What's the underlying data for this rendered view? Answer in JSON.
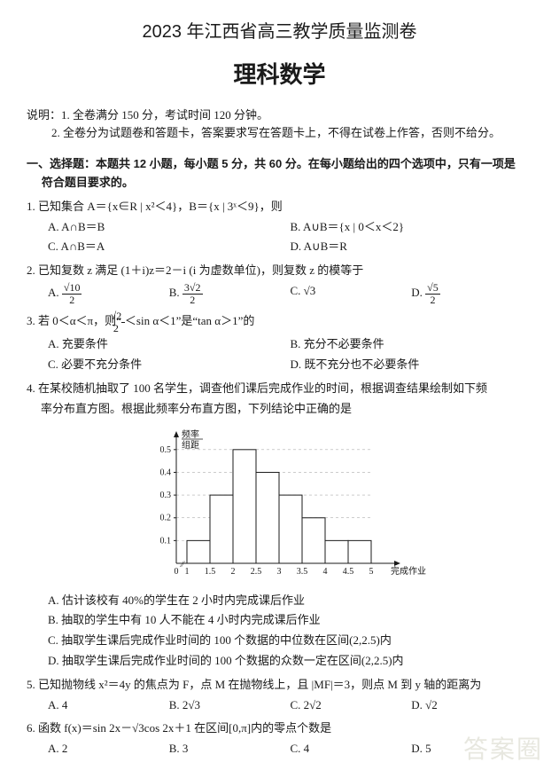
{
  "header": {
    "main_title": "2023 年江西省高三教学质量监测卷",
    "subject": "理科数学"
  },
  "instructions": {
    "label": "说明：",
    "items": [
      "1. 全卷满分 150 分，考试时间 120 分钟。",
      "2. 全卷分为试题卷和答题卡，答案要求写在答题卡上，不得在试卷上作答，否则不给分。"
    ]
  },
  "section": {
    "line1": "一、选择题：本题共 12 小题，每小题 5 分，共 60 分。在每小题给出的四个选项中，只有一项是",
    "line2": "符合题目要求的。"
  },
  "q1": {
    "stem": "1. 已知集合 A＝{x∈R | x²＜4}，B＝{x | 3ˣ＜9}，则",
    "A": "A. A∩B＝B",
    "B": "B. A∪B＝{x | 0＜x＜2}",
    "C": "C. A∩B＝A",
    "D": "D. A∪B＝R"
  },
  "q2": {
    "stem": "2. 已知复数 z 满足 (1＋i)z＝2－i (i 为虚数单位)，则复数 z 的模等于",
    "A_num": "√10",
    "A_den": "2",
    "B_num": "3√2",
    "B_den": "2",
    "C": "C. √3",
    "D_num": "√5",
    "D_den": "2"
  },
  "q3": {
    "stem_pre": "3. 若 0＜α＜π，则“",
    "stem_num": "√2",
    "stem_den": "2",
    "stem_post": "＜sin α＜1”是“tan α＞1”的",
    "A": "A. 充要条件",
    "B": "B. 充分不必要条件",
    "C": "C. 必要不充分条件",
    "D": "D. 既不充分也不必要条件"
  },
  "q4": {
    "stem1": "4. 在某校随机抽取了 100 名学生，调查他们课后完成作业的时间，根据调查结果绘制如下频",
    "stem2": "率分布直方图。根据此频率分布直方图，下列结论中正确的是",
    "A": "A. 估计该校有 40%的学生在 2 小时内完成课后作业",
    "B": "B. 抽取的学生中有 10 人不能在 4 小时内完成课后作业",
    "C": "C. 抽取学生课后完成作业时间的 100 个数据的中位数在区间(2,2.5)内",
    "D": "D. 抽取学生课后完成作业时间的 100 个数据的众数一定在区间(2,2.5)内",
    "chart": {
      "type": "histogram",
      "ylabel_top": "频率",
      "ylabel_bot": "组距",
      "xlabel": "完成作业时间/时",
      "x_ticks": [
        "0",
        "1",
        "1.5",
        "2",
        "2.5",
        "3",
        "3.5",
        "4",
        "4.5",
        "5"
      ],
      "y_ticks": [
        0.1,
        0.2,
        0.3,
        0.4,
        0.5
      ],
      "bins": [
        {
          "label": "1-1.5",
          "height": 0.1
        },
        {
          "label": "1.5-2",
          "height": 0.3
        },
        {
          "label": "2-2.5",
          "height": 0.5
        },
        {
          "label": "2.5-3",
          "height": 0.4
        },
        {
          "label": "3-3.5",
          "height": 0.3
        },
        {
          "label": "3.5-4",
          "height": 0.2
        },
        {
          "label": "4-4.5",
          "height": 0.1
        },
        {
          "label": "4.5-5",
          "height": 0.1
        }
      ],
      "bar_fill": "#ffffff",
      "bar_stroke": "#1a1a1a",
      "axis_color": "#1a1a1a",
      "dash_color": "#1a1a1a",
      "bg": "#ffffff",
      "font_size": 10,
      "ylim": 0.55,
      "bar_unit_width": 26
    }
  },
  "q5": {
    "stem": "5. 已知抛物线 x²＝4y 的焦点为 F，点 M 在抛物线上，且 |MF|＝3，则点 M 到 y 轴的距离为",
    "A": "A. 4",
    "B": "B. 2√3",
    "C": "C. 2√2",
    "D": "D. √2"
  },
  "q6": {
    "stem": "6. 函数 f(x)＝sin 2x－√3cos 2x＋1 在区间[0,π]内的零点个数是",
    "A": "A. 2",
    "B": "B. 3",
    "C": "C. 4",
    "D": "D. 5"
  },
  "watermark": "答案圈"
}
